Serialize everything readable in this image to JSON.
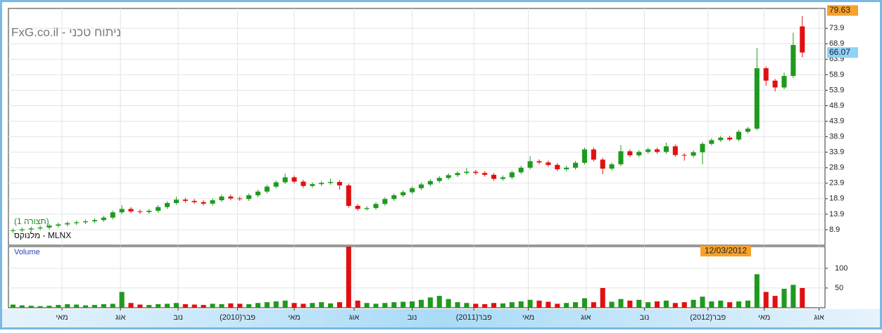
{
  "chart_data": {
    "type": "candlestick",
    "title": "FxG.co.il - ניתוח טכני",
    "subtitle": "(תצורה 1)",
    "symbol": "מלנוקס - MLNX",
    "cursor_date": "12/03/2012",
    "up_color": "#1e9a1e",
    "down_color": "#e01010",
    "grid": true,
    "x": [
      1,
      3,
      5,
      7,
      9,
      11,
      13,
      15,
      17,
      19,
      21,
      23,
      25,
      27,
      29,
      31,
      33,
      35,
      37,
      39,
      41,
      43,
      45,
      47,
      49,
      51,
      53,
      55,
      57,
      59,
      61,
      63,
      65,
      67,
      69,
      71,
      73,
      75,
      77,
      79,
      81,
      83,
      85,
      87,
      89,
      91,
      93,
      95,
      97,
      99,
      101,
      103,
      105,
      107,
      109,
      111,
      113,
      115,
      117,
      119,
      121,
      123,
      125,
      127,
      129,
      131,
      133,
      135,
      137,
      139,
      141,
      143,
      145,
      147,
      149,
      151,
      153,
      155,
      157,
      159,
      161,
      163,
      165,
      167,
      169,
      171,
      173,
      175
    ],
    "open": [
      8.5,
      8.7,
      9.0,
      9.3,
      9.6,
      10.2,
      10.6,
      11.0,
      11.3,
      11.6,
      12.0,
      12.8,
      14.5,
      15.6,
      14.8,
      14.6,
      15.0,
      16.2,
      17.5,
      18.6,
      18.2,
      17.8,
      17.3,
      18.4,
      19.6,
      19.0,
      18.8,
      20.0,
      21.2,
      22.8,
      24.2,
      25.8,
      24.4,
      23.0,
      23.6,
      24.0,
      24.3,
      23.2,
      16.6,
      15.6,
      15.9,
      17.2,
      18.8,
      20.0,
      21.0,
      22.3,
      23.5,
      24.6,
      25.6,
      26.5,
      27.2,
      27.6,
      27.2,
      26.6,
      25.3,
      25.8,
      27.4,
      28.9,
      31.0,
      30.6,
      29.8,
      28.4,
      28.9,
      30.5,
      34.8,
      31.5,
      28.6,
      30.0,
      34.2,
      32.9,
      34.0,
      34.8,
      34.0,
      35.8,
      33.0,
      32.8,
      33.9,
      36.6,
      37.8,
      38.6,
      38.0,
      40.5,
      41.5,
      61.0,
      57.0,
      54.8,
      58.5,
      74.5
    ],
    "high": [
      9.3,
      9.6,
      9.9,
      10.2,
      10.8,
      11.2,
      11.6,
      11.9,
      12.2,
      12.6,
      13.4,
      15.1,
      16.8,
      16.2,
      15.4,
      15.6,
      16.8,
      18.1,
      19.6,
      19.2,
      18.8,
      18.4,
      19.0,
      20.2,
      20.2,
      19.6,
      20.6,
      21.8,
      23.4,
      24.8,
      27.0,
      26.4,
      25.0,
      24.2,
      24.6,
      25.4,
      24.9,
      23.8,
      17.2,
      16.5,
      17.8,
      19.4,
      20.6,
      21.6,
      22.9,
      24.1,
      25.2,
      26.2,
      27.1,
      27.8,
      28.8,
      28.2,
      27.8,
      27.2,
      26.4,
      28.0,
      29.5,
      32.6,
      31.6,
      31.2,
      30.4,
      29.5,
      31.1,
      35.4,
      35.4,
      32.1,
      30.6,
      36.2,
      34.8,
      34.6,
      35.4,
      35.4,
      37.0,
      36.4,
      33.6,
      34.5,
      37.2,
      38.4,
      39.2,
      39.2,
      41.1,
      42.1,
      67.5,
      61.6,
      57.6,
      59.6,
      72.5,
      77.8
    ],
    "low": [
      7.9,
      8.1,
      8.4,
      8.7,
      9.0,
      9.6,
      10.0,
      10.4,
      10.7,
      11.0,
      11.4,
      12.2,
      13.9,
      14.2,
      14.0,
      14.0,
      14.4,
      15.6,
      16.9,
      17.6,
      17.2,
      16.7,
      16.7,
      17.8,
      18.4,
      18.2,
      18.2,
      19.4,
      20.6,
      22.2,
      23.6,
      23.8,
      22.4,
      22.4,
      23.0,
      23.4,
      21.8,
      16.0,
      15.0,
      15.0,
      15.3,
      16.6,
      18.2,
      19.4,
      20.4,
      21.7,
      22.9,
      24.0,
      25.0,
      25.9,
      26.6,
      26.6,
      26.0,
      24.7,
      24.7,
      25.2,
      26.8,
      28.3,
      30.0,
      29.2,
      27.8,
      27.8,
      28.3,
      29.9,
      30.9,
      26.8,
      28.0,
      29.4,
      32.3,
      32.3,
      33.4,
      33.4,
      33.4,
      32.4,
      31.2,
      32.2,
      30.0,
      36.0,
      37.2,
      37.4,
      37.4,
      39.9,
      40.9,
      55.4,
      53.5,
      54.2,
      57.9,
      64.5
    ],
    "close": [
      8.7,
      9.0,
      9.3,
      9.6,
      10.2,
      10.6,
      11.0,
      11.3,
      11.6,
      12.0,
      12.8,
      14.5,
      15.6,
      14.8,
      14.6,
      15.0,
      16.2,
      17.5,
      18.6,
      18.2,
      17.8,
      17.3,
      18.4,
      19.6,
      19.0,
      18.8,
      20.0,
      21.2,
      22.8,
      24.2,
      25.8,
      24.4,
      23.0,
      23.6,
      24.0,
      24.3,
      23.2,
      16.6,
      15.6,
      15.9,
      17.2,
      18.8,
      20.0,
      21.0,
      22.3,
      23.5,
      24.6,
      25.6,
      26.5,
      27.2,
      27.6,
      27.2,
      26.6,
      25.3,
      25.8,
      27.4,
      28.9,
      31.0,
      30.6,
      29.8,
      28.4,
      28.9,
      30.5,
      34.8,
      31.5,
      28.6,
      30.0,
      34.2,
      32.9,
      34.0,
      34.8,
      34.0,
      35.8,
      33.0,
      32.8,
      33.9,
      36.6,
      37.8,
      38.6,
      38.0,
      40.5,
      41.5,
      61.0,
      57.0,
      54.8,
      58.5,
      68.5,
      66.07
    ],
    "xlim": [
      0,
      180
    ],
    "xticks": [
      {
        "value": 11.8,
        "label": "מאי"
      },
      {
        "value": 24.7,
        "label": "אוג"
      },
      {
        "value": 37.4,
        "label": "נוב"
      },
      {
        "value": 50.5,
        "label": "פבר(2010)"
      },
      {
        "value": 63,
        "label": "מאי"
      },
      {
        "value": 76.2,
        "label": "אוג"
      },
      {
        "value": 89,
        "label": "נוב"
      },
      {
        "value": 102.6,
        "label": "פבר(2011)"
      },
      {
        "value": 114.6,
        "label": "מאי"
      },
      {
        "value": 127.3,
        "label": "אוג"
      },
      {
        "value": 140.2,
        "label": "נוב"
      },
      {
        "value": 154.2,
        "label": "פבר(2012)"
      },
      {
        "value": 166.6,
        "label": "מאי"
      },
      {
        "value": 178.7,
        "label": "אוג"
      }
    ],
    "ylim": [
      3.9,
      80.3
    ],
    "yticks": [
      8.9,
      13.9,
      18.9,
      23.9,
      28.9,
      33.9,
      38.9,
      43.9,
      48.9,
      53.9,
      58.9,
      63.9,
      68.9,
      73.9
    ],
    "price_labels": [
      79.63,
      66.07
    ],
    "price_label_colors": [
      "#f7a12a",
      "#8fd3f7"
    ],
    "volume": {
      "name": "Volume",
      "values": [
        8,
        6,
        5,
        4,
        5,
        7,
        9,
        8,
        6,
        7,
        9,
        10,
        40,
        12,
        8,
        7,
        9,
        10,
        12,
        9,
        8,
        7,
        10,
        9,
        11,
        10,
        9,
        12,
        14,
        16,
        18,
        12,
        10,
        12,
        14,
        11,
        14,
        155,
        18,
        12,
        10,
        12,
        14,
        15,
        16,
        20,
        26,
        30,
        22,
        14,
        12,
        10,
        9,
        12,
        11,
        14,
        16,
        20,
        18,
        15,
        10,
        12,
        14,
        24,
        14,
        50,
        15,
        22,
        18,
        20,
        14,
        16,
        18,
        12,
        14,
        20,
        28,
        16,
        18,
        14,
        16,
        18,
        85,
        40,
        30,
        48,
        58,
        50
      ],
      "ylim": [
        0,
        155
      ],
      "yticks": [
        50,
        100
      ]
    }
  }
}
